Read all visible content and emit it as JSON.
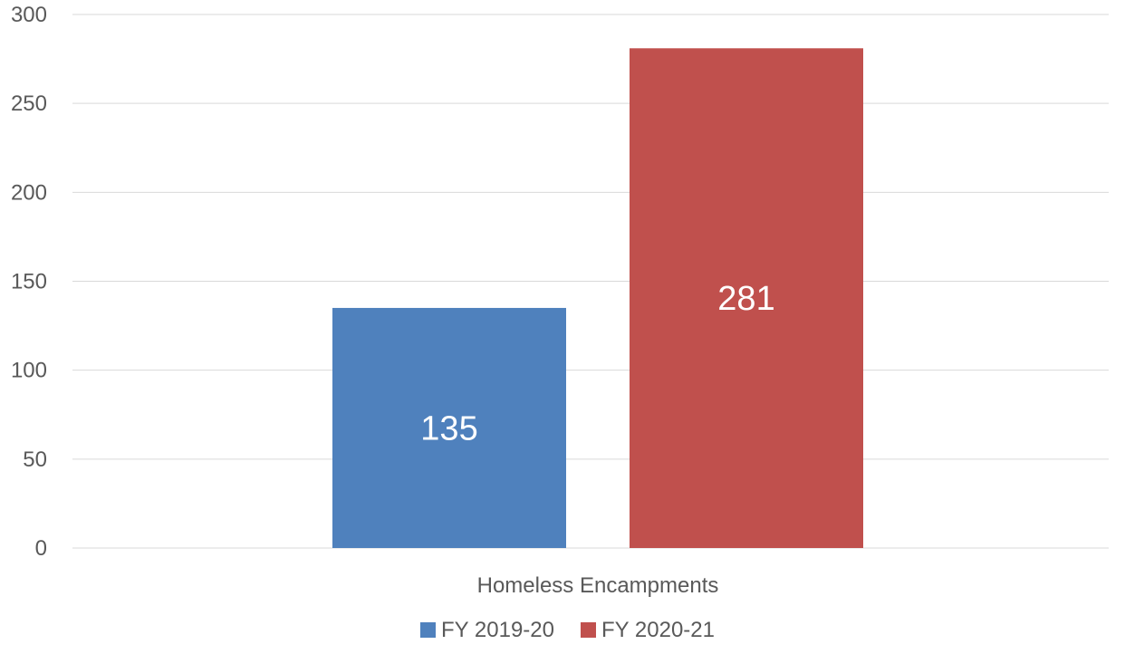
{
  "chart_data": {
    "type": "bar",
    "categories": [
      "Homeless Encampments"
    ],
    "series": [
      {
        "name": "FY 2019-20",
        "values": [
          135
        ],
        "color": "#4F81BD"
      },
      {
        "name": "FY 2020-21",
        "values": [
          281
        ],
        "color": "#C0504D"
      }
    ],
    "ylim": [
      0,
      300
    ],
    "yticks": [
      0,
      50,
      100,
      150,
      200,
      250,
      300
    ],
    "grid": true,
    "legend_position": "bottom",
    "data_labels": true
  }
}
